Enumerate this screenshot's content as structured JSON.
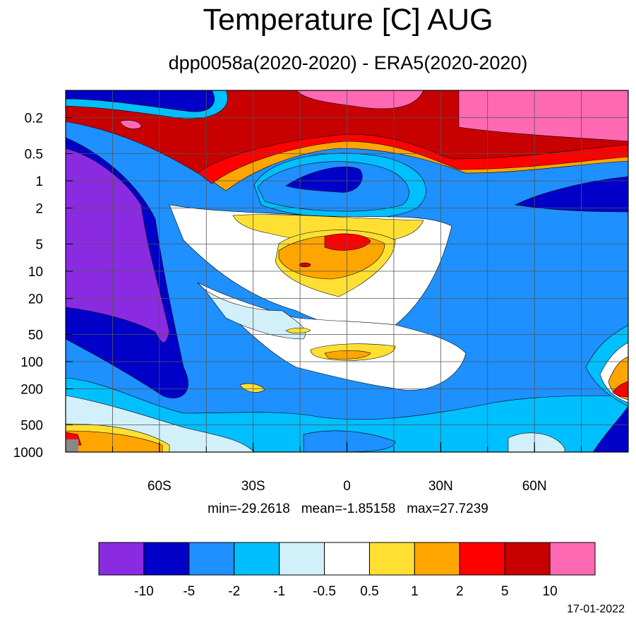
{
  "title": "Temperature [C] AUG",
  "subtitle": "dpp0058a(2020-2020) - ERA5(2020-2020)",
  "stats": {
    "min": "min=-29.2618",
    "mean": "mean=-1.85158",
    "max": "max=27.7239"
  },
  "date": "17-01-2022",
  "colorbar": {
    "colors": [
      "#8a2be2",
      "#0000c8",
      "#1e90ff",
      "#00bfff",
      "#d2f0fa",
      "#ffffff",
      "#ffe032",
      "#ffa500",
      "#ff0000",
      "#c80000",
      "#ff69b4"
    ],
    "labels": [
      "-10",
      "-5",
      "-2",
      "-1",
      "-0.5",
      "0.5",
      "1",
      "2",
      "5",
      "10"
    ]
  },
  "chart_data": {
    "type": "heatmap",
    "title": "Temperature [C] AUG",
    "subtitle": "dpp0058a(2020-2020) - ERA5(2020-2020)",
    "x_ticks": [
      {
        "value": -60,
        "label": "60S"
      },
      {
        "value": -30,
        "label": "30S"
      },
      {
        "value": 0,
        "label": "0"
      },
      {
        "value": 30,
        "label": "30N"
      },
      {
        "value": 60,
        "label": "60N"
      }
    ],
    "xlim": [
      -90,
      90
    ],
    "y_ticks": [
      {
        "value": 0.2,
        "label": "0.2"
      },
      {
        "value": 0.5,
        "label": "0.5"
      },
      {
        "value": 1,
        "label": "1"
      },
      {
        "value": 2,
        "label": "2"
      },
      {
        "value": 5,
        "label": "5"
      },
      {
        "value": 10,
        "label": "10"
      },
      {
        "value": 20,
        "label": "20"
      },
      {
        "value": 50,
        "label": "50"
      },
      {
        "value": 100,
        "label": "100"
      },
      {
        "value": 200,
        "label": "200"
      },
      {
        "value": 500,
        "label": "500"
      },
      {
        "value": 1000,
        "label": "1000"
      }
    ],
    "y_scale": "log",
    "y_inverted": true,
    "ylim": [
      0.1,
      1000
    ],
    "grid": true,
    "levels": [
      -10,
      -5,
      -2,
      -1,
      -0.5,
      0.5,
      1,
      2,
      5,
      10
    ],
    "stats": {
      "min": -29.2618,
      "mean": -1.85158,
      "max": 27.7239
    }
  }
}
